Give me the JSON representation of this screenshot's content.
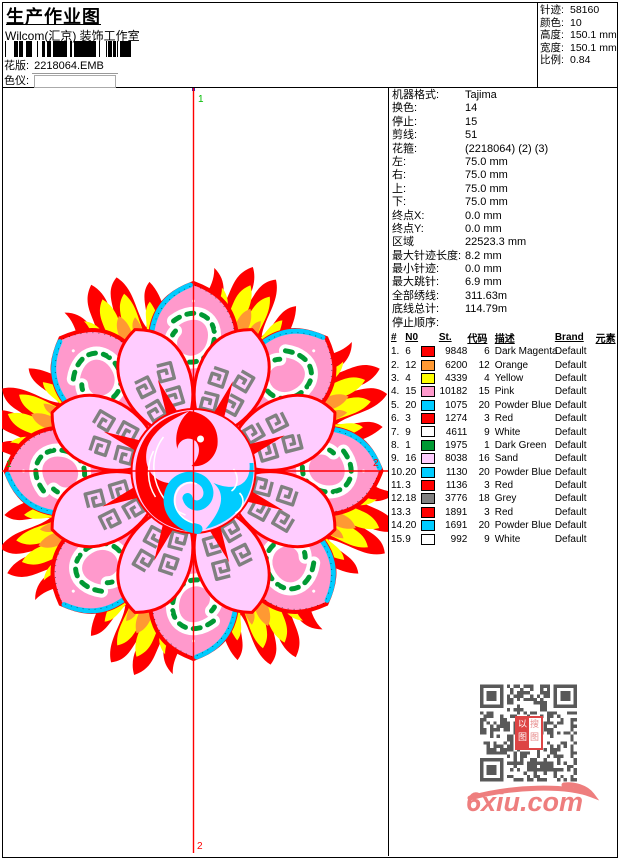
{
  "header": {
    "title": "生产作业图",
    "subtitle": "Wilcom(汇京) 装饰工作室",
    "design_label": "花版:",
    "design_value": "2218064.EMB",
    "color_label": "色仪:"
  },
  "summary": {
    "rows": [
      {
        "label": "针迹:",
        "value": "58160"
      },
      {
        "label": "颜色:",
        "value": "10"
      },
      {
        "label": "高度:",
        "value": "150.1 mm"
      },
      {
        "label": "宽度:",
        "value": "150.1 mm"
      },
      {
        "label": "比例:",
        "value": "0.84"
      }
    ]
  },
  "machine": {
    "rows": [
      {
        "label": "机器格式:",
        "value": "Tajima"
      },
      {
        "label": "换色:",
        "value": "14"
      },
      {
        "label": "停止:",
        "value": "15"
      },
      {
        "label": "剪线:",
        "value": "51"
      },
      {
        "label": "花箍:",
        "value": "(2218064) (2) (3)"
      },
      {
        "label": "左:",
        "value": "75.0 mm"
      },
      {
        "label": "右:",
        "value": "75.0 mm"
      },
      {
        "label": "上:",
        "value": "75.0 mm"
      },
      {
        "label": "下:",
        "value": "75.0 mm"
      },
      {
        "label": "终点X:",
        "value": "0.0 mm"
      },
      {
        "label": "终点Y:",
        "value": "0.0 mm"
      },
      {
        "label": "区域",
        "value": "22523.3 mm"
      },
      {
        "label": "最大针迹长度:",
        "value": "8.2 mm"
      },
      {
        "label": "最小针迹:",
        "value": "0.0 mm"
      },
      {
        "label": "最大跳针:",
        "value": "6.9 mm"
      },
      {
        "label": "全部绣线:",
        "value": "311.63m"
      },
      {
        "label": "底线总计:",
        "value": "114.79m"
      }
    ],
    "stop_sequence_label": "停止顺序:"
  },
  "stop_table": {
    "headers": {
      "idx": "#",
      "n0": "N0",
      "st": "St.",
      "code": "代码",
      "desc": "描述",
      "brand": "Brand",
      "elem": "元素"
    },
    "rows": [
      {
        "idx": "1.",
        "n0": "6",
        "color": "#FF0000",
        "st": "9848",
        "code": "6",
        "desc": "Dark Magenta",
        "brand": "Default"
      },
      {
        "idx": "2.",
        "n0": "12",
        "color": "#FF9933",
        "st": "6200",
        "code": "12",
        "desc": "Orange",
        "brand": "Default"
      },
      {
        "idx": "3.",
        "n0": "4",
        "color": "#FFFF00",
        "st": "4339",
        "code": "4",
        "desc": "Yellow",
        "brand": "Default"
      },
      {
        "idx": "4.",
        "n0": "15",
        "color": "#FF99CC",
        "st": "10182",
        "code": "15",
        "desc": "Pink",
        "brand": "Default"
      },
      {
        "idx": "5.",
        "n0": "20",
        "color": "#00CCFF",
        "st": "1075",
        "code": "20",
        "desc": "Powder Blue",
        "brand": "Default"
      },
      {
        "idx": "6.",
        "n0": "3",
        "color": "#FF0000",
        "st": "1274",
        "code": "3",
        "desc": "Red",
        "brand": "Default"
      },
      {
        "idx": "7.",
        "n0": "9",
        "color": "#FFFFFF",
        "st": "4611",
        "code": "9",
        "desc": "White",
        "brand": "Default"
      },
      {
        "idx": "8.",
        "n0": "1",
        "color": "#009933",
        "st": "1975",
        "code": "1",
        "desc": "Dark Green",
        "brand": "Default"
      },
      {
        "idx": "9.",
        "n0": "16",
        "color": "#FFCCFF",
        "st": "8038",
        "code": "16",
        "desc": "Sand",
        "brand": "Default"
      },
      {
        "idx": "10.",
        "n0": "20",
        "color": "#00CCFF",
        "st": "1130",
        "code": "20",
        "desc": "Powder Blue",
        "brand": "Default"
      },
      {
        "idx": "11.",
        "n0": "3",
        "color": "#FF0000",
        "st": "1136",
        "code": "3",
        "desc": "Red",
        "brand": "Default"
      },
      {
        "idx": "12.",
        "n0": "18",
        "color": "#808080",
        "st": "3776",
        "code": "18",
        "desc": "Grey",
        "brand": "Default"
      },
      {
        "idx": "13.",
        "n0": "3",
        "color": "#FF0000",
        "st": "1891",
        "code": "3",
        "desc": "Red",
        "brand": "Default"
      },
      {
        "idx": "14.",
        "n0": "20",
        "color": "#00CCFF",
        "st": "1691",
        "code": "20",
        "desc": "Powder Blue",
        "brand": "Default"
      },
      {
        "idx": "15.",
        "n0": "9",
        "color": "#FFFFFF",
        "st": "992",
        "code": "9",
        "desc": "White",
        "brand": "Default"
      }
    ]
  },
  "design": {
    "markers": {
      "start_top": "1",
      "start_left": "1",
      "end_right": "2",
      "end_bottom": "2"
    },
    "colors": {
      "red": "#FF0000",
      "orange": "#FF9933",
      "yellow": "#FFFF00",
      "pink": "#FF99CC",
      "light_pink": "#FFCCFF",
      "powder_blue": "#00CCFF",
      "grey": "#808080",
      "green": "#009933",
      "crosshair": "#FF0000",
      "marker_green": "#00BB00"
    }
  },
  "footer": {
    "watermark": "6xiu.com",
    "watermark_color": "#EE7E7E",
    "qr_color": "#595959",
    "seal_left": "以图",
    "seal_right": "搜图"
  }
}
